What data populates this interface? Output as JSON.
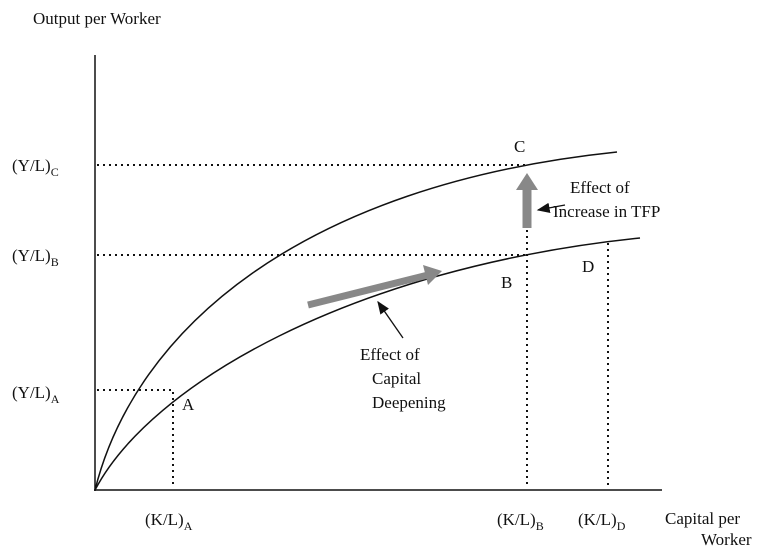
{
  "y_axis_label": "Output per Worker",
  "x_axis_label": [
    "Capital per",
    "Worker"
  ],
  "y_labels": [
    {
      "text": "(Y/L)",
      "sub": "C"
    },
    {
      "text": "(Y/L)",
      "sub": "B"
    },
    {
      "text": "(Y/L)",
      "sub": "A"
    }
  ],
  "x_labels": [
    {
      "text": "(K/L)",
      "sub": "A"
    },
    {
      "text": "(K/L)",
      "sub": "B"
    },
    {
      "text": "(K/L)",
      "sub": "D"
    }
  ],
  "points": [
    "A",
    "B",
    "C",
    "D"
  ],
  "annotations": {
    "tfp": [
      "Effect of",
      "Increase in TFP"
    ],
    "capital": [
      "Effect of",
      "Capital",
      "Deepening"
    ]
  }
}
